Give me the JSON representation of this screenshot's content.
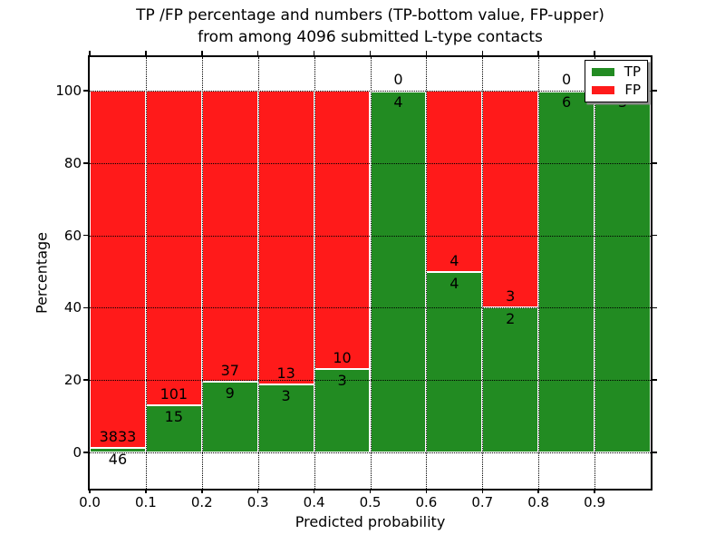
{
  "title": {
    "line1": "TP /FP percentage and numbers (TP-bottom value, FP-upper)",
    "line2": "from among 4096 submitted L-type contacts"
  },
  "axes": {
    "xlabel": "Predicted probability",
    "ylabel": "Percentage"
  },
  "legend": {
    "items": [
      {
        "label": "TP",
        "color": "#228B22"
      },
      {
        "label": "FP",
        "color": "#FF1A1A"
      }
    ],
    "position": "upper right"
  },
  "colors": {
    "tp_green": "#228B22",
    "fp_red": "#FF1A1A",
    "bar_edge": "#FFFFFF",
    "grid": "#000000",
    "background": "#FFFFFF"
  },
  "chart_data": {
    "type": "bar",
    "stacked": true,
    "normalized": "each bin scaled to 100%",
    "title": "TP /FP percentage and numbers (TP-bottom value, FP-upper)\nfrom among 4096 submitted L-type contacts",
    "xlabel": "Predicted probability",
    "ylabel": "Percentage",
    "total_contacts": 4096,
    "bin_edges": [
      0.0,
      0.1,
      0.2,
      0.3,
      0.4,
      0.5,
      0.6,
      0.7,
      0.8,
      0.9,
      1.0
    ],
    "x_tick_labels": [
      "0.0",
      "0.1",
      "0.2",
      "0.3",
      "0.4",
      "0.5",
      "0.6",
      "0.7",
      "0.8",
      "0.9"
    ],
    "y_ticks": [
      0,
      20,
      40,
      60,
      80,
      100
    ],
    "ylim": [
      -10.9,
      109.3
    ],
    "grid": "dotted, both axes",
    "legend_position": "upper right",
    "series": [
      {
        "name": "TP",
        "color": "#228B22",
        "counts": [
          46,
          15,
          9,
          3,
          3,
          4,
          4,
          2,
          6,
          3
        ]
      },
      {
        "name": "FP",
        "color": "#FF1A1A",
        "counts": [
          3833,
          101,
          37,
          13,
          10,
          0,
          4,
          3,
          0,
          0
        ]
      }
    ],
    "tp_percent_heights": [
      1.19,
      12.93,
      19.57,
      18.75,
      23.08,
      100.0,
      50.0,
      40.0,
      100.0,
      100.0
    ],
    "bar_annotation_rule": "TP count printed below green/red boundary, FP count printed above it"
  }
}
